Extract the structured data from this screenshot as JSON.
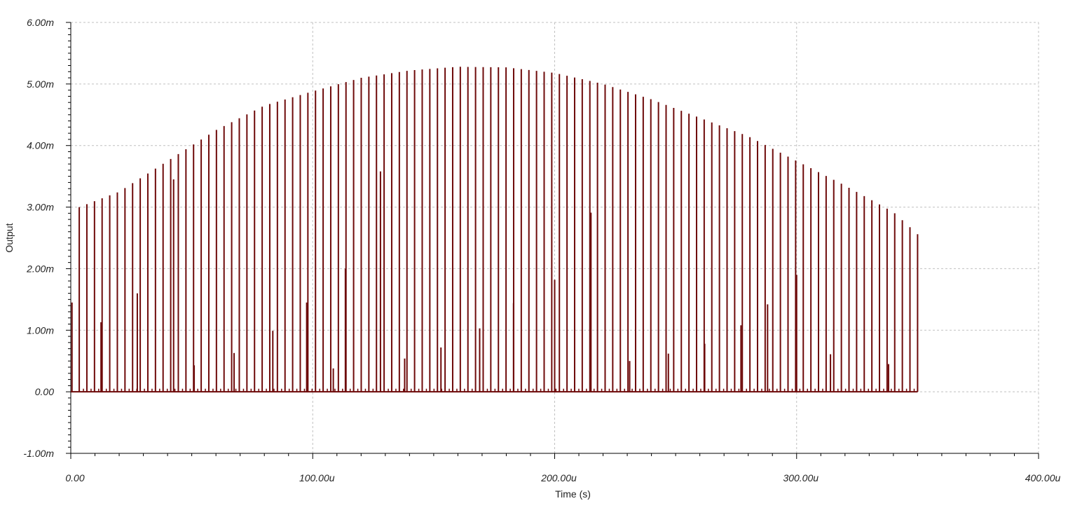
{
  "chart_data": {
    "type": "line",
    "title": "",
    "xlabel": "Time (s)",
    "ylabel": "Output",
    "xlim": [
      0,
      0.0004
    ],
    "ylim": [
      -0.001,
      0.006
    ],
    "x_ticks": [
      0,
      0.0001,
      0.0002,
      0.0003,
      0.0004
    ],
    "x_tick_labels": [
      "0.00",
      "100.00u",
      "200.00u",
      "300.00u",
      "400.00u"
    ],
    "y_ticks": [
      -0.001,
      0,
      0.001,
      0.002,
      0.003,
      0.004,
      0.005,
      0.006
    ],
    "y_tick_labels": [
      "-1.00m",
      "0.00",
      "1.00m",
      "2.00m",
      "3.00m",
      "4.00m",
      "5.00m",
      "6.00m"
    ],
    "grid": true,
    "series": [
      {
        "color": "#6e0a0a",
        "description_of_shape": "narrow pulse train; pulse peaks follow a smooth envelope",
        "pulse_period": 3.15e-06,
        "first_pulse_time": 3.5e-06,
        "last_pulse_time": 0.00035,
        "envelope_points": [
          [
            3.5e-06,
            0.003
          ],
          [
            2e-05,
            0.00325
          ],
          [
            4e-05,
            0.00375
          ],
          [
            6e-05,
            0.00425
          ],
          [
            8e-05,
            0.00465
          ],
          [
            0.0001,
            0.00488
          ],
          [
            0.00012,
            0.0051
          ],
          [
            0.00014,
            0.00522
          ],
          [
            0.00016,
            0.00528
          ],
          [
            0.00018,
            0.00527
          ],
          [
            0.0002,
            0.00518
          ],
          [
            0.00022,
            0.005
          ],
          [
            0.00024,
            0.00475
          ],
          [
            0.00026,
            0.00445
          ],
          [
            0.00028,
            0.00415
          ],
          [
            0.0003,
            0.00375
          ],
          [
            0.00032,
            0.00335
          ],
          [
            0.00034,
            0.00292
          ],
          [
            0.00035,
            0.00256
          ]
        ],
        "secondary_spikes": [
          [
            5e-07,
            0.00145
          ],
          [
            1.25e-05,
            0.00113
          ],
          [
            2.75e-05,
            0.0016
          ],
          [
            4.25e-05,
            0.00345
          ],
          [
            5.1e-05,
            0.00043
          ],
          [
            6.75e-05,
            0.00063
          ],
          [
            8.35e-05,
            0.00099
          ],
          [
            9.75e-05,
            0.00145
          ],
          [
            0.0001085,
            0.00038
          ],
          [
            0.0001135,
            0.002
          ],
          [
            0.000128,
            0.00358
          ],
          [
            0.000138,
            0.00054
          ],
          [
            0.000153,
            0.00072
          ],
          [
            0.000169,
            0.00103
          ],
          [
            0.000183,
            0.00144
          ],
          [
            0.0002,
            0.00182
          ],
          [
            0.000215,
            0.00291
          ],
          [
            0.000231,
            0.0005
          ],
          [
            0.000247,
            0.00062
          ],
          [
            0.000262,
            0.00078
          ],
          [
            0.000277,
            0.00108
          ],
          [
            0.000288,
            0.00142
          ],
          [
            0.0003,
            0.0019
          ],
          [
            0.000314,
            0.00061
          ],
          [
            0.000338,
            0.00045
          ]
        ]
      }
    ]
  }
}
